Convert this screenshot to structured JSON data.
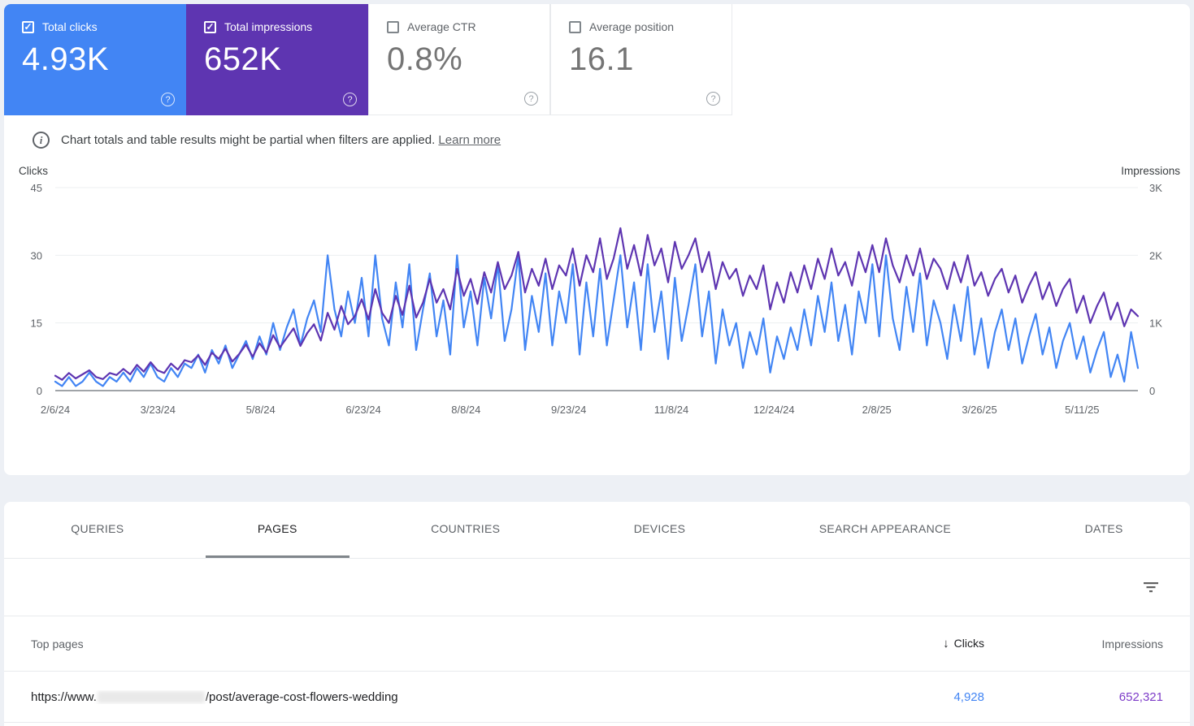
{
  "cards": [
    {
      "label": "Total clicks",
      "value": "4.93K",
      "checked": true,
      "bg": "#4285f4"
    },
    {
      "label": "Total impressions",
      "value": "652K",
      "checked": true,
      "bg": "#5e35b1"
    },
    {
      "label": "Average CTR",
      "value": "0.8%",
      "checked": false,
      "bg": "#ffffff"
    },
    {
      "label": "Average position",
      "value": "16.1",
      "checked": false,
      "bg": "#ffffff"
    }
  ],
  "notice": {
    "text": "Chart totals and table results might be partial when filters are applied.",
    "link_label": "Learn more"
  },
  "chart_data": {
    "type": "line",
    "left_axis": {
      "title": "Clicks",
      "ticks": [
        "45",
        "30",
        "15",
        "0"
      ],
      "tick_values": [
        45,
        30,
        15,
        0
      ],
      "ylim": [
        0,
        45
      ]
    },
    "right_axis": {
      "title": "Impressions",
      "ticks": [
        "3K",
        "2K",
        "1K",
        "0"
      ],
      "tick_values": [
        3000,
        2000,
        1000,
        0
      ],
      "ylim": [
        0,
        3000
      ]
    },
    "x_tick_labels": [
      "2/6/24",
      "3/23/24",
      "5/8/24",
      "6/23/24",
      "8/8/24",
      "9/23/24",
      "11/8/24",
      "12/24/24",
      "2/8/25",
      "3/26/25",
      "5/11/25"
    ],
    "tick_every_days": 46,
    "total_days": 485,
    "grid": true,
    "series": [
      {
        "name": "Clicks",
        "axis": "left",
        "color": "#4285f4",
        "values": [
          2,
          1,
          3,
          1,
          2,
          4,
          2,
          1,
          3,
          2,
          4,
          2,
          5,
          3,
          6,
          3,
          2,
          5,
          3,
          6,
          5,
          8,
          4,
          9,
          6,
          10,
          5,
          8,
          11,
          7,
          12,
          8,
          15,
          9,
          14,
          18,
          10,
          16,
          20,
          13,
          30,
          18,
          12,
          22,
          15,
          25,
          12,
          30,
          16,
          10,
          24,
          14,
          28,
          9,
          18,
          26,
          12,
          20,
          8,
          30,
          14,
          22,
          10,
          25,
          16,
          28,
          11,
          18,
          30,
          9,
          21,
          13,
          26,
          10,
          22,
          15,
          28,
          8,
          24,
          12,
          27,
          10,
          20,
          30,
          14,
          24,
          9,
          28,
          13,
          22,
          7,
          25,
          11,
          19,
          28,
          12,
          22,
          6,
          18,
          10,
          15,
          5,
          13,
          8,
          16,
          4,
          12,
          7,
          14,
          9,
          18,
          10,
          21,
          13,
          24,
          11,
          19,
          8,
          22,
          15,
          28,
          12,
          30,
          16,
          9,
          23,
          13,
          26,
          10,
          20,
          15,
          7,
          19,
          11,
          23,
          8,
          16,
          5,
          13,
          18,
          9,
          16,
          6,
          12,
          17,
          8,
          14,
          5,
          11,
          15,
          7,
          12,
          4,
          9,
          13,
          3,
          8,
          2,
          13,
          5
        ]
      },
      {
        "name": "Impressions",
        "axis": "right",
        "color": "#5e35b1",
        "values": [
          220,
          160,
          260,
          180,
          240,
          300,
          200,
          170,
          260,
          230,
          320,
          240,
          380,
          280,
          420,
          300,
          260,
          400,
          310,
          450,
          420,
          520,
          380,
          560,
          470,
          620,
          430,
          540,
          680,
          500,
          700,
          560,
          820,
          640,
          780,
          920,
          660,
          850,
          980,
          740,
          1150,
          900,
          1250,
          980,
          1100,
          1350,
          1050,
          1500,
          1150,
          1000,
          1400,
          1120,
          1550,
          1080,
          1300,
          1650,
          1300,
          1500,
          1200,
          1800,
          1400,
          1650,
          1280,
          1750,
          1450,
          1900,
          1500,
          1700,
          2050,
          1450,
          1800,
          1550,
          1950,
          1500,
          1850,
          1700,
          2100,
          1550,
          2000,
          1750,
          2250,
          1650,
          1950,
          2400,
          1800,
          2150,
          1700,
          2300,
          1850,
          2100,
          1600,
          2200,
          1800,
          2000,
          2250,
          1750,
          2050,
          1500,
          1900,
          1650,
          1800,
          1400,
          1700,
          1500,
          1850,
          1200,
          1600,
          1300,
          1750,
          1450,
          1850,
          1500,
          1950,
          1650,
          2100,
          1700,
          1900,
          1550,
          2050,
          1750,
          2150,
          1750,
          2250,
          1850,
          1600,
          2000,
          1700,
          2100,
          1650,
          1950,
          1800,
          1500,
          1900,
          1600,
          2000,
          1550,
          1750,
          1400,
          1650,
          1800,
          1450,
          1700,
          1300,
          1550,
          1750,
          1350,
          1600,
          1250,
          1500,
          1650,
          1150,
          1400,
          1000,
          1250,
          1450,
          1050,
          1300,
          950,
          1200,
          1100
        ]
      }
    ]
  },
  "tabs": {
    "active_index": 1,
    "items": [
      {
        "label": "QUERIES"
      },
      {
        "label": "PAGES"
      },
      {
        "label": "COUNTRIES"
      },
      {
        "label": "DEVICES"
      },
      {
        "label": "SEARCH APPEARANCE"
      },
      {
        "label": "DATES"
      }
    ]
  },
  "table": {
    "columns": {
      "pages": "Top pages",
      "clicks": "Clicks",
      "impressions": "Impressions"
    },
    "sort": {
      "column": "clicks",
      "direction": "desc",
      "arrow": "↓"
    },
    "rows": [
      {
        "url_prefix": "https://www.",
        "url_redacted": true,
        "url_suffix": "/post/average-cost-flowers-wedding",
        "clicks": "4,928",
        "impressions": "652,321"
      }
    ]
  }
}
